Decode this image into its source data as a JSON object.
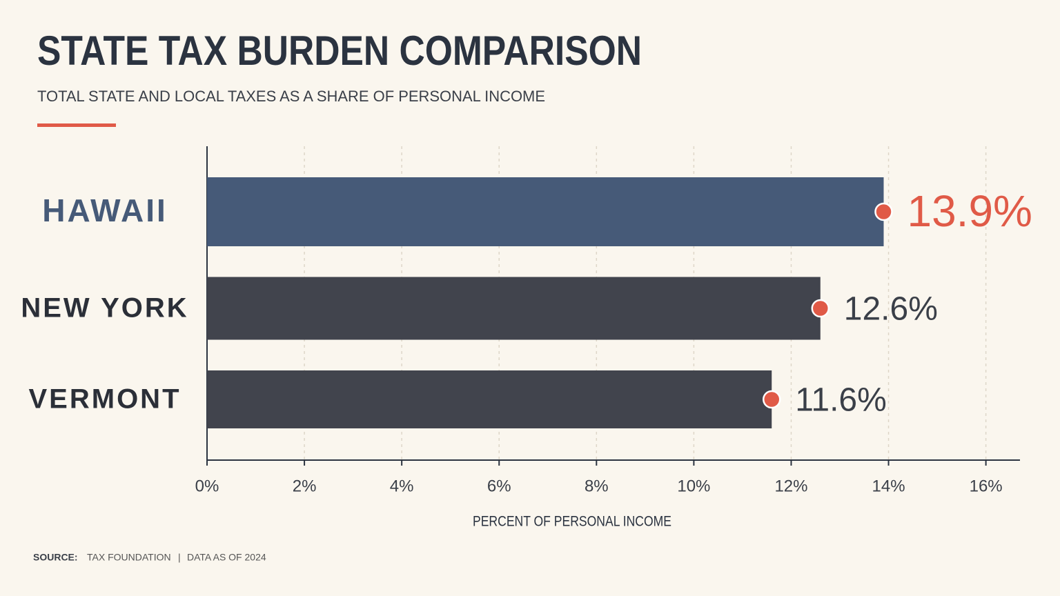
{
  "chart_data": {
    "type": "bar",
    "orientation": "horizontal",
    "title": "STATE TAX BURDEN COMPARISON",
    "subtitle": "TOTAL STATE AND LOCAL TAXES AS A SHARE OF PERSONAL INCOME",
    "x_label": "PERCENT OF PERSONAL INCOME",
    "categories": [
      "HAWAII",
      "NEW YORK",
      "VERMONT"
    ],
    "values": [
      13.9,
      12.6,
      11.6
    ],
    "value_labels": [
      "13.9%",
      "12.6%",
      "11.6%"
    ],
    "colors": [
      "#465a78",
      "#41444d",
      "#41444d"
    ],
    "marker_color": "#e05a47",
    "highlight_label_color": "#e05a47",
    "xlim": [
      0,
      16.7
    ],
    "xticks": [
      {
        "value": 0,
        "label": "0%"
      },
      {
        "value": 2,
        "label": "2%"
      },
      {
        "value": 4,
        "label": "4%"
      },
      {
        "value": 6,
        "label": "6%"
      },
      {
        "value": 8,
        "label": "8%"
      },
      {
        "value": 10,
        "label": "10%"
      },
      {
        "value": 12,
        "label": "12%"
      },
      {
        "value": 14,
        "label": "14%"
      },
      {
        "value": 16,
        "label": "16%"
      }
    ],
    "grid": true,
    "footer": {
      "source_label": "SOURCE:",
      "source": "TAX FOUNDATION",
      "separator": "|",
      "note": "DATA AS OF 2024"
    }
  }
}
